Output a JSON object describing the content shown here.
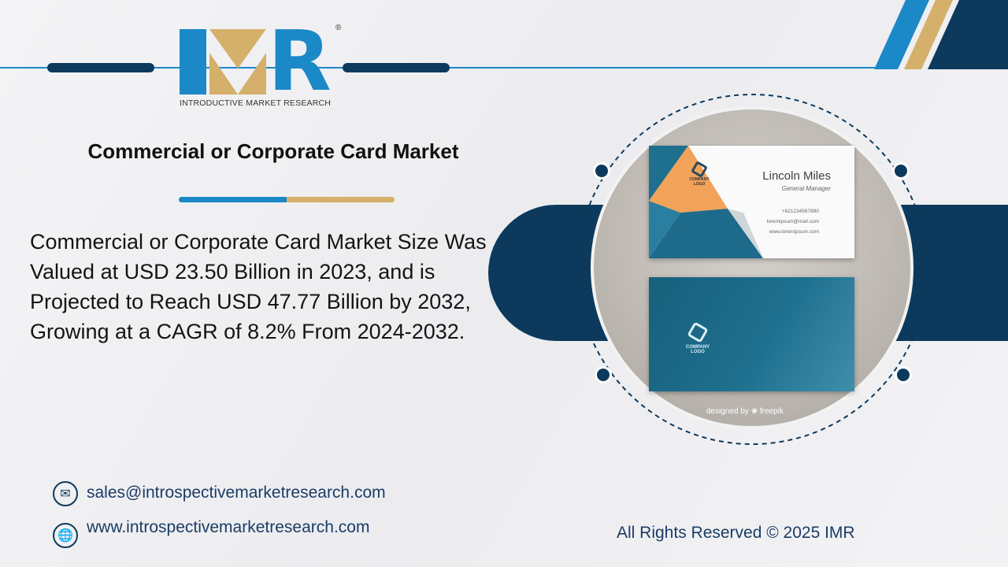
{
  "logo": {
    "letters": "IMR",
    "registered": "®",
    "tagline": "INTRODUCTIVE MARKET RESEARCH"
  },
  "title": "Commercial or Corporate Card Market",
  "description": "Commercial or Corporate Card Market Size Was Valued at USD 23.50 Billion in 2023, and is Projected to Reach USD 47.77 Billion by 2032, Growing at a CAGR of 8.2% From 2024-2032.",
  "contacts": {
    "email": "sales@introspectivemarketresearch.com",
    "website": "www.introspectivemarketresearch.com"
  },
  "card": {
    "name": "Lincoln Miles",
    "role": "General Manager",
    "phone": "+621234567890",
    "email": "loremipsum@mail.com",
    "web": "www.loremipsum.com",
    "logo_text": "COMPANY LOGO",
    "credit": "designed by ❀ freepik"
  },
  "footer": "All Rights Reserved © 2025 IMR",
  "colors": {
    "navy": "#0d3a5c",
    "blue": "#1b88c7",
    "gold": "#d4b06a"
  }
}
